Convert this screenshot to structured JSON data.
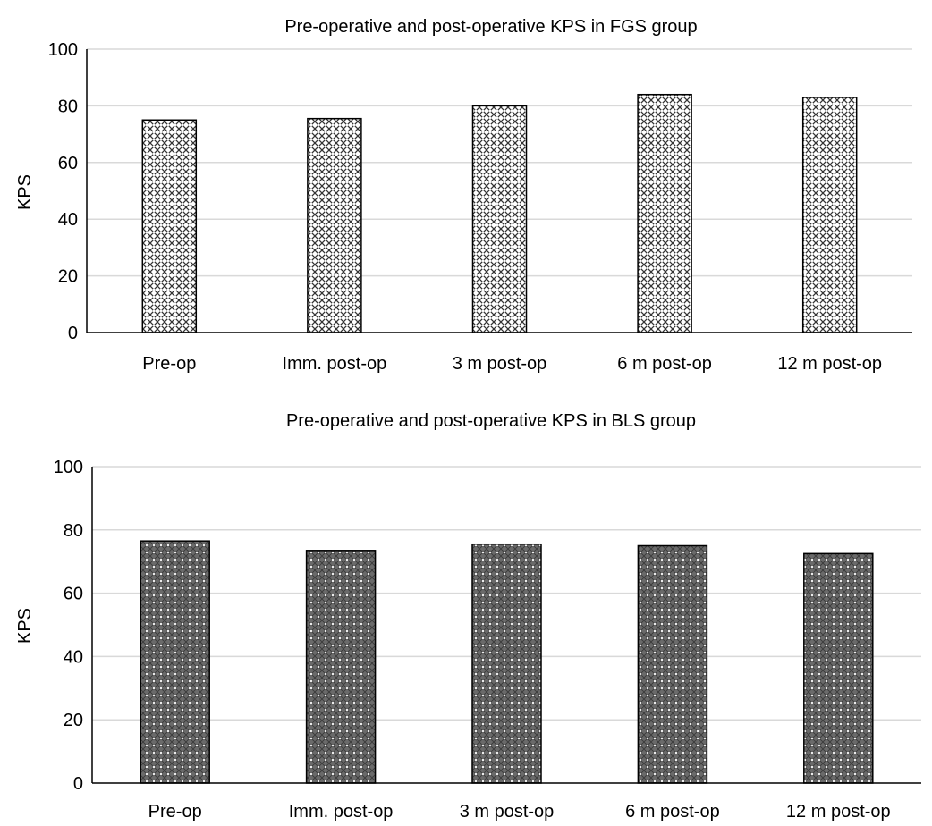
{
  "chart_data": [
    {
      "type": "bar",
      "title": "Pre-operative and post-operative KPS in FGS group",
      "xlabel": "",
      "ylabel": "KPS",
      "ylim": [
        0,
        100
      ],
      "yticks": [
        0,
        20,
        40,
        60,
        80,
        100
      ],
      "grid": true,
      "categories": [
        "Pre-op",
        "Imm. post-op",
        "3 m post-op",
        "6 m post-op",
        "12 m post-op"
      ],
      "values": [
        75,
        75.5,
        80,
        84,
        83
      ],
      "fill_pattern": "crosshatch",
      "bar_color": "#7a7a7a",
      "grid_color": "#d9d9d9"
    },
    {
      "type": "bar",
      "title": "Pre-operative and post-operative KPS in BLS group",
      "xlabel": "",
      "ylabel": "KPS",
      "ylim": [
        0,
        100
      ],
      "yticks": [
        0,
        20,
        40,
        60,
        80,
        100
      ],
      "grid": true,
      "categories": [
        "Pre-op",
        "Imm. post-op",
        "3 m post-op",
        "6 m post-op",
        "12 m post-op"
      ],
      "values": [
        76.5,
        73.5,
        75.5,
        75,
        72.5
      ],
      "fill_pattern": "dotted",
      "bar_color": "#5a5a5a",
      "grid_color": "#d9d9d9"
    }
  ]
}
